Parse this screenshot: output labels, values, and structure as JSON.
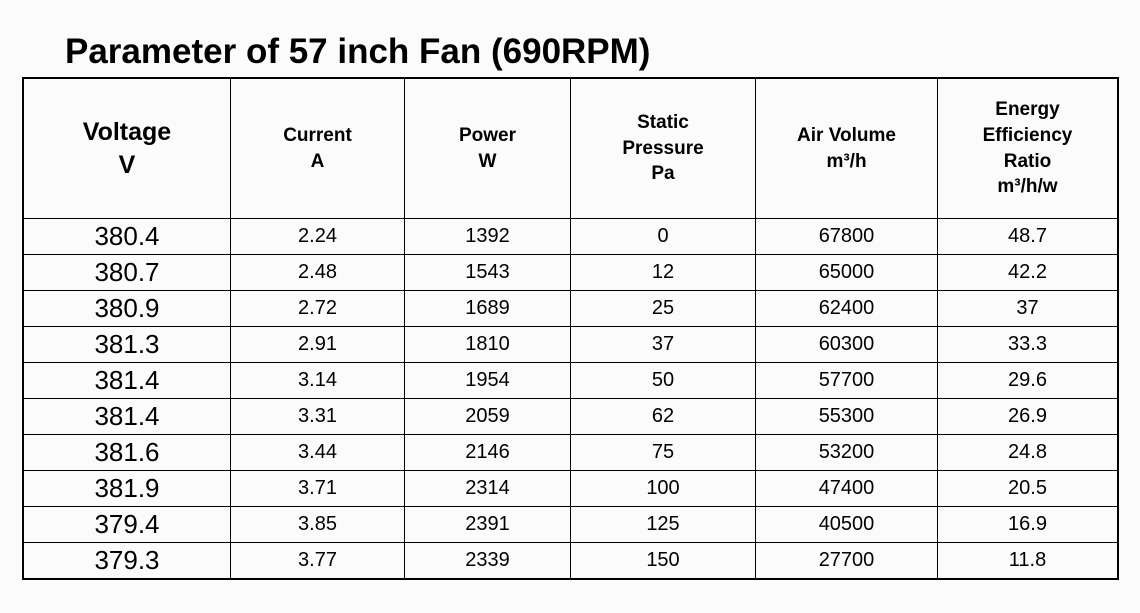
{
  "title": "Parameter of 57 inch Fan (690RPM)",
  "colors": {
    "background": "#fbfbfb",
    "border": "#000000",
    "text": "#000000"
  },
  "table": {
    "headers": [
      {
        "key": "voltage",
        "label": "Voltage\nV"
      },
      {
        "key": "current",
        "label": "Current\nA"
      },
      {
        "key": "power",
        "label": "Power\nW"
      },
      {
        "key": "static-pressure",
        "label": "Static\nPressure\nPa"
      },
      {
        "key": "air-volume",
        "label": "Air Volume\nm³/h"
      },
      {
        "key": "energy-efficiency-ratio",
        "label": "Energy\nEfficiency\nRatio\nm³/h/w"
      }
    ],
    "rows": [
      [
        "380.4",
        "2.24",
        "1392",
        "0",
        "67800",
        "48.7"
      ],
      [
        "380.7",
        "2.48",
        "1543",
        "12",
        "65000",
        "42.2"
      ],
      [
        "380.9",
        "2.72",
        "1689",
        "25",
        "62400",
        "37"
      ],
      [
        "381.3",
        "2.91",
        "1810",
        "37",
        "60300",
        "33.3"
      ],
      [
        "381.4",
        "3.14",
        "1954",
        "50",
        "57700",
        "29.6"
      ],
      [
        "381.4",
        "3.31",
        "2059",
        "62",
        "55300",
        "26.9"
      ],
      [
        "381.6",
        "3.44",
        "2146",
        "75",
        "53200",
        "24.8"
      ],
      [
        "381.9",
        "3.71",
        "2314",
        "100",
        "47400",
        "20.5"
      ],
      [
        "379.4",
        "3.85",
        "2391",
        "125",
        "40500",
        "16.9"
      ],
      [
        "379.3",
        "3.77",
        "2339",
        "150",
        "27700",
        "11.8"
      ]
    ]
  }
}
